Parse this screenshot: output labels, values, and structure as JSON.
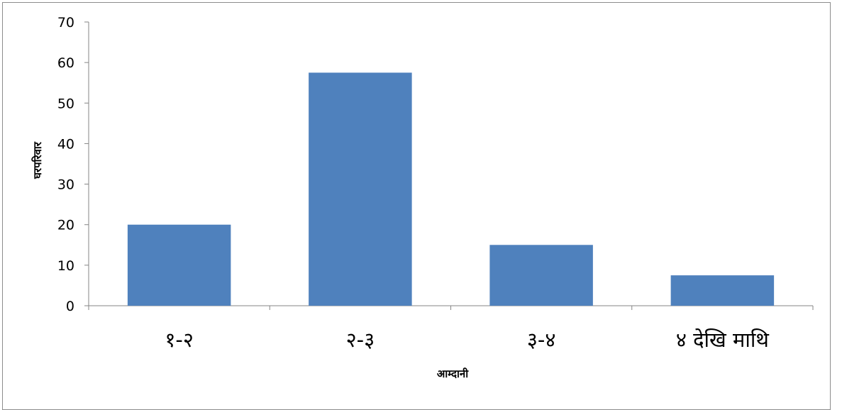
{
  "chart_data": {
    "type": "bar",
    "categories": [
      "१-२",
      "२-३",
      "३-४",
      "४ देखि माथि"
    ],
    "values": [
      20,
      57.5,
      15,
      7.5
    ],
    "title": "",
    "xlabel": "आम्दानी",
    "ylabel": "घरपरिवार",
    "ylim": [
      0,
      70
    ],
    "yticks": [
      0,
      10,
      20,
      30,
      40,
      50,
      60,
      70
    ],
    "grid": false,
    "legend": "none",
    "bar_color": "#4f81bd",
    "axis_color": "#868686"
  }
}
